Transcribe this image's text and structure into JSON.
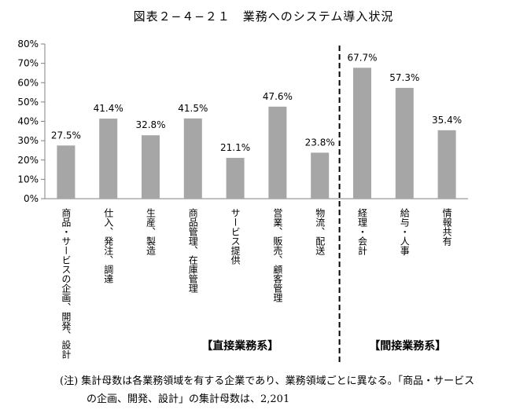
{
  "chart_data": {
    "type": "bar",
    "title": "図表２−４−２１　業務へのシステム導入状況",
    "categories": [
      "商品・サービスの企画、開発、設計",
      "仕入、発注、調達",
      "生産、製造",
      "商品管理、在庫管理",
      "サービス提供",
      "営業、販売、顧客管理",
      "物流、配送",
      "経理・会計",
      "給与・人事",
      "情報共有"
    ],
    "values": [
      27.5,
      41.4,
      32.8,
      41.5,
      21.1,
      47.6,
      23.8,
      67.7,
      57.3,
      35.4
    ],
    "data_labels": [
      "27.5%",
      "41.4%",
      "32.8%",
      "41.5%",
      "21.1%",
      "47.6%",
      "23.8%",
      "67.7%",
      "57.3%",
      "35.4%"
    ],
    "y_ticks": [
      "0%",
      "10%",
      "20%",
      "30%",
      "40%",
      "50%",
      "60%",
      "70%",
      "80%"
    ],
    "ylim": [
      0,
      80
    ],
    "groups": [
      {
        "label": "【直接業務系】",
        "count": 7
      },
      {
        "label": "【間接業務系】",
        "count": 3
      }
    ],
    "colors": {
      "bar": "#a6a6a6",
      "axis": "#808080",
      "divider": "#000000"
    }
  },
  "note": {
    "line1": "(注)  集計母数は各業務領域を有する企業であり、業務領域ごとに異なる。「商品・サービス",
    "line2": "の企画、開発、設計」の集計母数は、2,201"
  }
}
